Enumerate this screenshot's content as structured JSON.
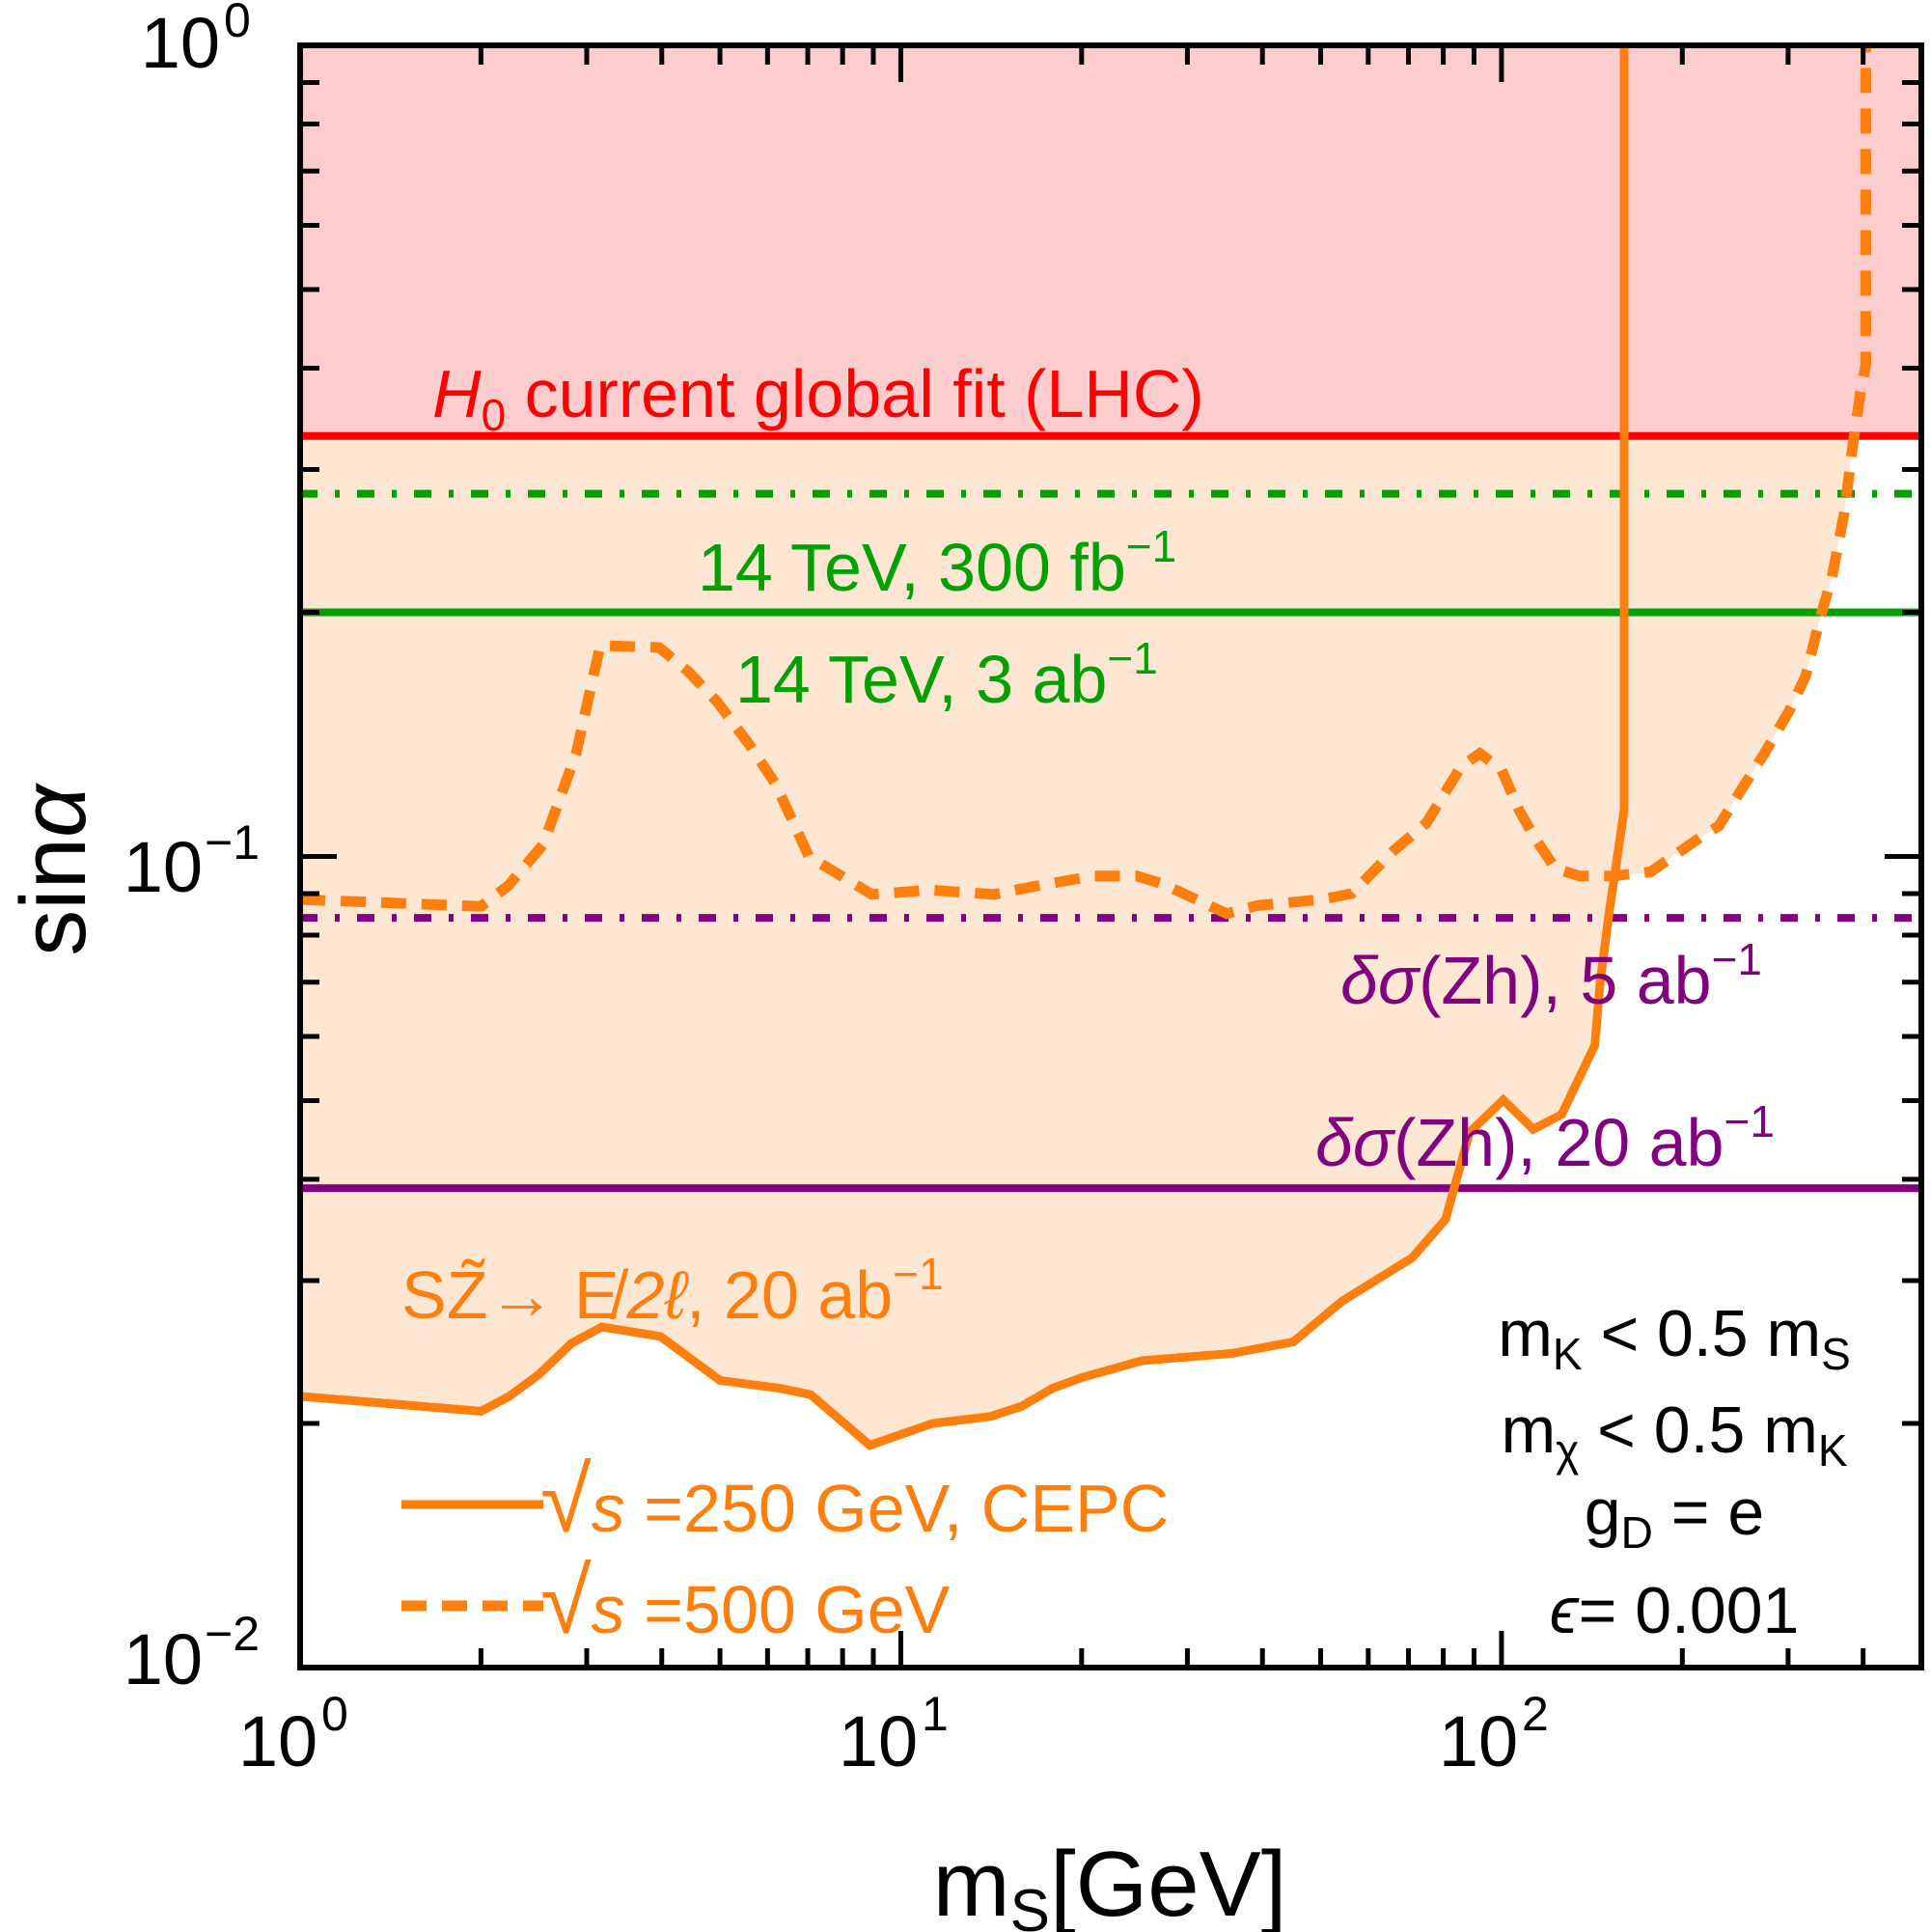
{
  "chart_data": {
    "type": "line",
    "title": "",
    "xlabel": {
      "main": "m",
      "sub": "S",
      "tail": "[GeV]"
    },
    "ylabel": {
      "main": "sin",
      "greek": "α"
    },
    "xscale": "log",
    "yscale": "log",
    "xlim": [
      1,
      500
    ],
    "ylim": [
      0.01,
      1
    ],
    "grid": false,
    "x_ticks": [
      {
        "value": 1,
        "base": "10",
        "exp": "0"
      },
      {
        "value": 10,
        "base": "10",
        "exp": "1"
      },
      {
        "value": 100,
        "base": "10",
        "exp": "2"
      }
    ],
    "y_ticks": [
      {
        "value": 1,
        "base": "10",
        "exp": "0"
      },
      {
        "value": 0.1,
        "base": "10",
        "exp": "−1"
      },
      {
        "value": 0.01,
        "base": "10",
        "exp": "−2"
      }
    ],
    "horizontal_limits": [
      {
        "name": "H0 current global fit (LHC)",
        "value": 0.33,
        "style": "solid",
        "color": "#ff0000",
        "shade_above": true,
        "shade_color": "#fdcccc"
      },
      {
        "name": "14 TeV, 300 fb-1",
        "value": 0.28,
        "style": "dashdot",
        "color": "#00a000"
      },
      {
        "name": "14 TeV, 3 ab-1",
        "value": 0.2,
        "style": "solid",
        "color": "#00a000"
      },
      {
        "name": "δσ(Zh), 5 ab-1",
        "value": 0.084,
        "style": "dashdot",
        "color": "#800080"
      },
      {
        "name": "δσ(Zh), 20 ab-1",
        "value": 0.039,
        "style": "solid",
        "color": "#800080"
      }
    ],
    "series": [
      {
        "name": "√s = 250 GeV, CEPC",
        "style": "solid",
        "color": "#ff7f0e",
        "x": [
          1,
          2,
          2.23,
          2.5,
          2.83,
          3.18,
          3.98,
          5.0,
          6.27,
          7.08,
          8.88,
          11.3,
          14.1,
          15.9,
          17.9,
          20.1,
          25.2,
          35.6,
          45,
          54.3,
          71,
          80.7,
          88.5,
          100.7,
          113,
          126,
          143,
          146,
          151,
          160,
          160
        ],
        "y": [
          0.0216,
          0.0207,
          0.0216,
          0.023,
          0.0251,
          0.0263,
          0.0256,
          0.0226,
          0.0221,
          0.0217,
          0.0188,
          0.02,
          0.0204,
          0.021,
          0.0221,
          0.0228,
          0.0239,
          0.0244,
          0.0252,
          0.0283,
          0.032,
          0.0357,
          0.0457,
          0.0501,
          0.0461,
          0.0481,
          0.0585,
          0.07,
          0.085,
          0.114,
          1.0
        ]
      },
      {
        "name": "√s = 500 GeV",
        "style": "dashed",
        "color": "#ff7f0e",
        "x": [
          1,
          2,
          2.22,
          2.54,
          2.88,
          3.16,
          3.96,
          4.43,
          4.95,
          5.61,
          6.18,
          7.03,
          8.95,
          11.2,
          14.3,
          16.6,
          20.9,
          24.7,
          27.3,
          34.9,
          39.2,
          50.2,
          56.3,
          66.5,
          75,
          85.6,
          92,
          100,
          107,
          114,
          123,
          135,
          153,
          177,
          214,
          230,
          251,
          274,
          301,
          321,
          340,
          355,
          372,
          384,
          396,
          404,
          404
        ],
        "y": [
          0.0885,
          0.0868,
          0.092,
          0.1035,
          0.134,
          0.182,
          0.181,
          0.169,
          0.155,
          0.137,
          0.123,
          0.1,
          0.0898,
          0.0909,
          0.0898,
          0.0918,
          0.0946,
          0.0946,
          0.0925,
          0.085,
          0.087,
          0.0885,
          0.09,
          0.102,
          0.11,
          0.129,
          0.134,
          0.128,
          0.114,
          0.105,
          0.0966,
          0.0946,
          0.0946,
          0.0957,
          0.1055,
          0.109,
          0.121,
          0.134,
          0.151,
          0.167,
          0.198,
          0.221,
          0.265,
          0.319,
          0.374,
          0.403,
          1.0
        ]
      }
    ],
    "excluded_region": {
      "description": "region above the lower of the two orange curves",
      "color": "#fde6d2"
    },
    "labels": {
      "h0": {
        "main": "H",
        "sub": "0",
        "tail": " current global fit (LHC)"
      },
      "lhc300": {
        "main": "14 TeV, 300 fb",
        "sup": "−1"
      },
      "lhc3": {
        "main": "14 TeV, 3 ab",
        "sup": "−1"
      },
      "zh5": {
        "greek": "δσ",
        "main": "(Zh), 5 ab",
        "sup": "−1"
      },
      "zh20": {
        "greek": "δσ",
        "main": "(Zh), 20 ab",
        "sup": "−1"
      },
      "process": {
        "main": "SZ̃→ E̸",
        "ital": "2ℓ",
        "tail": ", 20 ab",
        "sup": "−1"
      }
    },
    "legend": {
      "position": "bottom-left",
      "items": [
        {
          "sqrt": "√",
          "s": "s",
          "text": " =250 GeV, CEPC",
          "style": "solid"
        },
        {
          "sqrt": "√",
          "s": "s",
          "text": " =500 GeV",
          "style": "dashed"
        }
      ]
    },
    "annotations": [
      {
        "parts": [
          "m",
          "K",
          " < 0.5 m",
          "S"
        ]
      },
      {
        "parts": [
          "m",
          "χ",
          " < 0.5 m",
          "K"
        ]
      },
      {
        "parts": [
          "g",
          "D",
          " = e",
          ""
        ]
      },
      {
        "parts": [
          "ϵ",
          "",
          "= 0.001",
          ""
        ]
      }
    ]
  }
}
